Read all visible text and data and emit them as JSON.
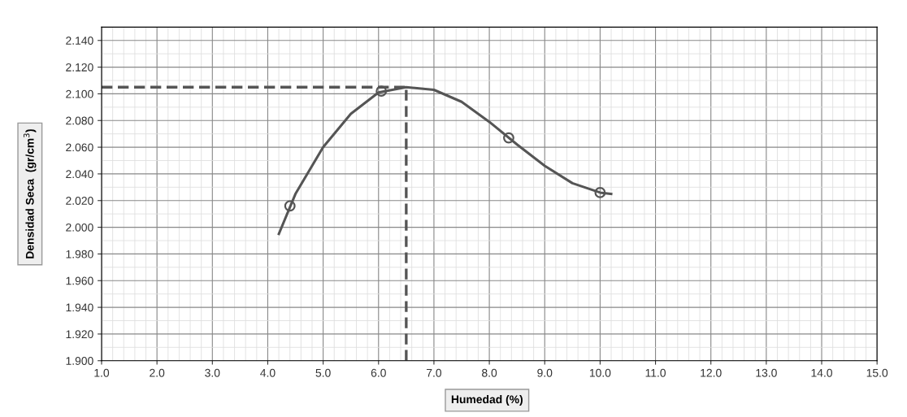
{
  "chart_data": {
    "type": "line",
    "xlabel": "Humedad (%)",
    "ylabel": "Densidad Seca  (gr/cm$^{3}$)",
    "xlim": [
      1.0,
      15.0
    ],
    "xticks": [
      {
        "value": 1,
        "label": "1.0"
      },
      {
        "value": 2,
        "label": "2.0"
      },
      {
        "value": 3,
        "label": "3.0"
      },
      {
        "value": 4,
        "label": "4.0"
      },
      {
        "value": 5,
        "label": "5.0"
      },
      {
        "value": 6,
        "label": "6.0"
      },
      {
        "value": 7,
        "label": "7.0"
      },
      {
        "value": 8,
        "label": "8.0"
      },
      {
        "value": 9,
        "label": "9.0"
      },
      {
        "value": 10,
        "label": "10.0"
      },
      {
        "value": 11,
        "label": "11.0"
      },
      {
        "value": 12,
        "label": "12.0"
      },
      {
        "value": 13,
        "label": "13.0"
      },
      {
        "value": 14,
        "label": "14.0"
      },
      {
        "value": 15,
        "label": "15.0"
      }
    ],
    "ylim": [
      1.9,
      2.15
    ],
    "yticks": [
      {
        "value": 1.9,
        "label": "1.900"
      },
      {
        "value": 1.92,
        "label": "1.920"
      },
      {
        "value": 1.94,
        "label": "1.940"
      },
      {
        "value": 1.96,
        "label": "1.960"
      },
      {
        "value": 1.98,
        "label": "1.980"
      },
      {
        "value": 2.0,
        "label": "2.000"
      },
      {
        "value": 2.02,
        "label": "2.020"
      },
      {
        "value": 2.04,
        "label": "2.040"
      },
      {
        "value": 2.06,
        "label": "2.060"
      },
      {
        "value": 2.08,
        "label": "2.080"
      },
      {
        "value": 2.1,
        "label": "2.100"
      },
      {
        "value": 2.12,
        "label": "2.120"
      },
      {
        "value": 2.14,
        "label": "2.140"
      }
    ],
    "grid": true,
    "series": [
      {
        "color": "#555555",
        "marker": "none",
        "line_style": "solid",
        "x": [
          4.2,
          4.5,
          5.0,
          5.5,
          6.0,
          6.5,
          7.0,
          7.5,
          8.0,
          8.5,
          9.0,
          9.5,
          10.0,
          10.2
        ],
        "values": [
          1.995,
          2.025,
          2.06,
          2.085,
          2.101,
          2.105,
          2.103,
          2.094,
          2.079,
          2.062,
          2.046,
          2.033,
          2.026,
          2.025
        ]
      },
      {
        "type": "scatter",
        "color": "#555555",
        "marker": "circle",
        "x": [
          4.4,
          6.05,
          8.35,
          10.0
        ],
        "values": [
          2.016,
          2.102,
          2.067,
          2.026
        ]
      }
    ],
    "ref_lines": [
      {
        "axis": "y",
        "value": 2.105,
        "color": "#555555",
        "line_style": "dashed"
      },
      {
        "axis": "x",
        "value": 6.5,
        "color": "#555555",
        "line_style": "dashed"
      }
    ]
  }
}
